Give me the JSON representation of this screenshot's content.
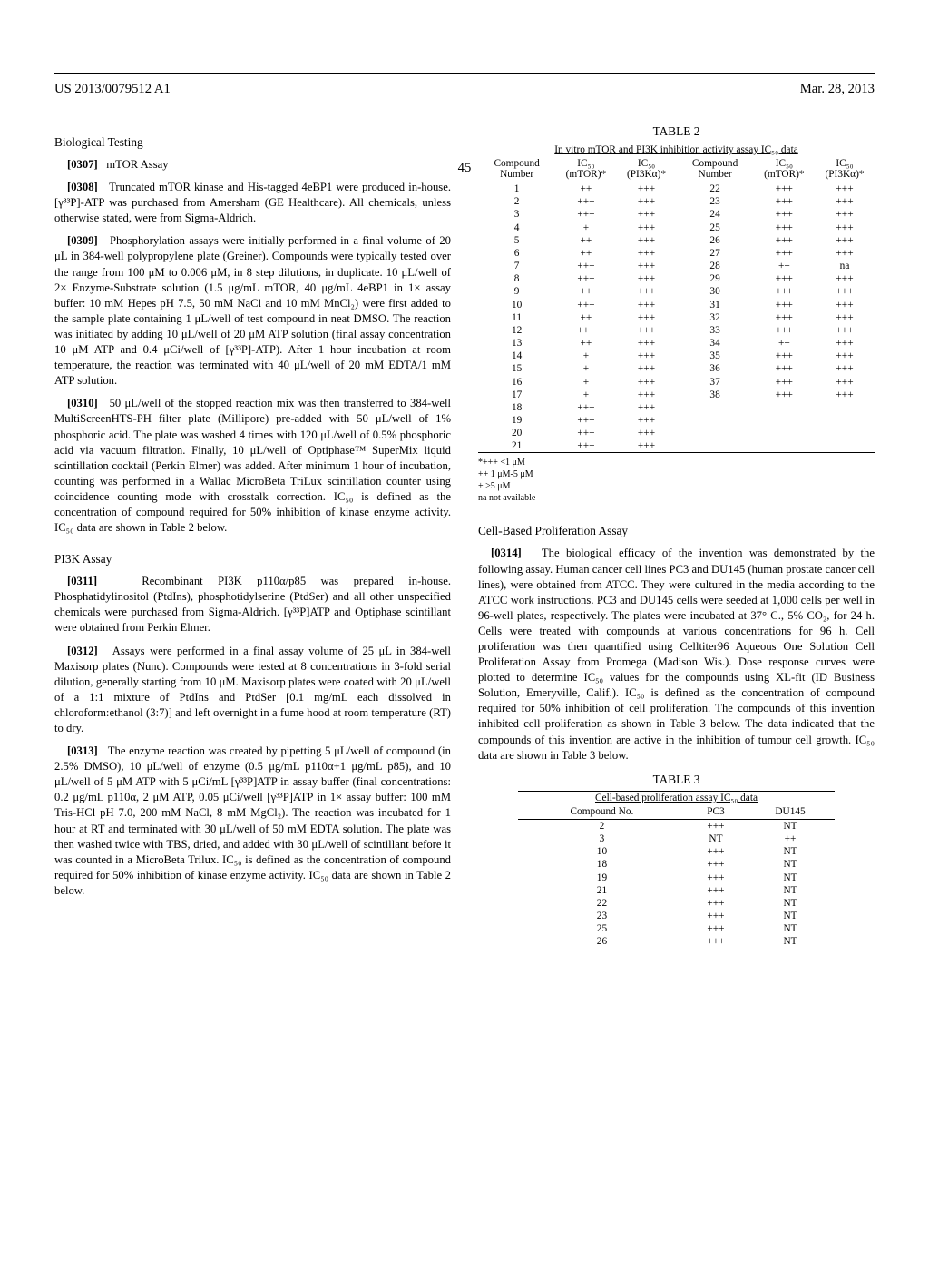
{
  "header": {
    "publication_number": "US 2013/0079512 A1",
    "page_number": "45",
    "date": "Mar. 28, 2013"
  },
  "left_column": {
    "heading_biological": "Biological Testing",
    "para_0307_num": "[0307]",
    "para_0307_text": "mTOR Assay",
    "para_0308_num": "[0308]",
    "para_0308_text": "Truncated mTOR kinase and His-tagged 4eBP1 were produced in-house. [γ³³P]-ATP was purchased from Amersham (GE Healthcare). All chemicals, unless otherwise stated, were from Sigma-Aldrich.",
    "para_0309_num": "[0309]",
    "para_0309_text": "Phosphorylation assays were initially performed in a final volume of 20 μL in 384-well polypropylene plate (Greiner). Compounds were typically tested over the range from 100 μM to 0.006 μM, in 8 step dilutions, in duplicate. 10 μL/well of 2× Enzyme-Substrate solution (1.5 μg/mL mTOR, 40 μg/mL 4eBP1 in 1× assay buffer: 10 mM Hepes pH 7.5, 50 mM NaCl and 10 mM MnCl₂) were first added to the sample plate containing 1 μL/well of test compound in neat DMSO. The reaction was initiated by adding 10 μL/well of 20 μM ATP solution (final assay concentration 10 μM ATP and 0.4 μCi/well of [γ³³P]-ATP). After 1 hour incubation at room temperature, the reaction was terminated with 40 μL/well of 20 mM EDTA/1 mM ATP solution.",
    "para_0310_num": "[0310]",
    "para_0310_text": "50 μL/well of the stopped reaction mix was then transferred to 384-well MultiScreenHTS-PH filter plate (Millipore) pre-added with 50 μL/well of 1% phosphoric acid. The plate was washed 4 times with 120 μL/well of 0.5% phosphoric acid via vacuum filtration. Finally, 10 μL/well of Optiphase™ SuperMix liquid scintillation cocktail (Perkin Elmer) was added. After minimum 1 hour of incubation, counting was performed in a Wallac MicroBeta TriLux scintillation counter using coincidence counting mode with crosstalk correction. IC₅₀ is defined as the concentration of compound required for 50% inhibition of kinase enzyme activity. IC₅₀ data are shown in Table 2 below.",
    "heading_pi3k": "PI3K Assay",
    "para_0311_num": "[0311]",
    "para_0311_text": "Recombinant PI3K p110α/p85 was prepared in-house. Phosphatidylinositol (PtdIns), phosphotidylserine (PtdSer) and all other unspecified chemicals were purchased from Sigma-Aldrich. [γ³³P]ATP and Optiphase scintillant were obtained from Perkin Elmer.",
    "para_0312_num": "[0312]",
    "para_0312_text": "Assays were performed in a final assay volume of 25 μL in 384-well Maxisorp plates (Nunc). Compounds were tested at 8 concentrations in 3-fold serial dilution, generally starting from 10 μM. Maxisorp plates were coated with 20 μL/well of a 1:1 mixture of PtdIns and PtdSer [0.1 mg/mL each dissolved in chloroform:ethanol (3:7)] and left overnight in a fume hood at room temperature (RT) to dry.",
    "para_0313_num": "[0313]",
    "para_0313_text": "The enzyme reaction was created by pipetting 5 μL/well of compound (in 2.5% DMSO), 10 μL/well of enzyme (0.5 μg/mL p110α+1 μg/mL p85), and 10 μL/well of 5 μM ATP with 5 μCi/mL [γ³³P]ATP in assay buffer (final concentrations: 0.2 μg/mL p110α, 2 μM ATP, 0.05 μCi/well [γ³³P]ATP in 1× assay buffer: 100 mM Tris-HCl pH 7.0, 200 mM NaCl, 8 mM MgCl₂). The reaction was incubated for 1 hour at RT and terminated with 30 μL/well of 50 mM EDTA solution. The plate was then washed twice with TBS, dried, and added with 30 μL/well of scintillant before it was counted in a MicroBeta Trilux. IC₅₀ is defined as the concentration of compound required for 50% inhibition of kinase enzyme activity. IC₅₀ data are shown in Table 2 below."
  },
  "right_column": {
    "table2_caption": "TABLE 2",
    "table2_subtitle": "In vitro mTOR and PI3K inhibition activity assay IC₅₀ data",
    "table2_header_compound": "Compound Number",
    "table2_header_mtor": "IC₅₀ (mTOR)*",
    "table2_header_pi3k": "IC₅₀ (PI3Kα)*",
    "table2_rows": [
      [
        "1",
        "++",
        "+++",
        "22",
        "+++",
        "+++"
      ],
      [
        "2",
        "+++",
        "+++",
        "23",
        "+++",
        "+++"
      ],
      [
        "3",
        "+++",
        "+++",
        "24",
        "+++",
        "+++"
      ],
      [
        "4",
        "+",
        "+++",
        "25",
        "+++",
        "+++"
      ],
      [
        "5",
        "++",
        "+++",
        "26",
        "+++",
        "+++"
      ],
      [
        "6",
        "++",
        "+++",
        "27",
        "+++",
        "+++"
      ],
      [
        "7",
        "+++",
        "+++",
        "28",
        "++",
        "na"
      ],
      [
        "8",
        "+++",
        "+++",
        "29",
        "+++",
        "+++"
      ],
      [
        "9",
        "++",
        "+++",
        "30",
        "+++",
        "+++"
      ],
      [
        "10",
        "+++",
        "+++",
        "31",
        "+++",
        "+++"
      ],
      [
        "11",
        "++",
        "+++",
        "32",
        "+++",
        "+++"
      ],
      [
        "12",
        "+++",
        "+++",
        "33",
        "+++",
        "+++"
      ],
      [
        "13",
        "++",
        "+++",
        "34",
        "++",
        "+++"
      ],
      [
        "14",
        "+",
        "+++",
        "35",
        "+++",
        "+++"
      ],
      [
        "15",
        "+",
        "+++",
        "36",
        "+++",
        "+++"
      ],
      [
        "16",
        "+",
        "+++",
        "37",
        "+++",
        "+++"
      ],
      [
        "17",
        "+",
        "+++",
        "38",
        "+++",
        "+++"
      ],
      [
        "18",
        "+++",
        "+++",
        "",
        "",
        ""
      ],
      [
        "19",
        "+++",
        "+++",
        "",
        "",
        ""
      ],
      [
        "20",
        "+++",
        "+++",
        "",
        "",
        ""
      ],
      [
        "21",
        "+++",
        "+++",
        "",
        "",
        ""
      ]
    ],
    "table2_footnote1": "*+++ <1 μM",
    "table2_footnote2": "++ 1 μM-5 μM",
    "table2_footnote3": "+ >5 μM",
    "table2_footnote4": "na not available",
    "heading_cell": "Cell-Based Proliferation Assay",
    "para_0314_num": "[0314]",
    "para_0314_text": "The biological efficacy of the invention was demonstrated by the following assay. Human cancer cell lines PC3 and DU145 (human prostate cancer cell lines), were obtained from ATCC. They were cultured in the media according to the ATCC work instructions. PC3 and DU145 cells were seeded at 1,000 cells per well in 96-well plates, respectively. The plates were incubated at 37° C., 5% CO₂, for 24 h. Cells were treated with compounds at various concentrations for 96 h. Cell proliferation was then quantified using Celltiter96 Aqueous One Solution Cell Proliferation Assay from Promega (Madison Wis.). Dose response curves were plotted to determine IC₅₀ values for the compounds using XL-fit (ID Business Solution, Emeryville, Calif.). IC₅₀ is defined as the concentration of compound required for 50% inhibition of cell proliferation. The compounds of this invention inhibited cell proliferation as shown in Table 3 below. The data indicated that the compounds of this invention are active in the inhibition of tumour cell growth. IC₅₀ data are shown in Table 3 below.",
    "table3_caption": "TABLE 3",
    "table3_subtitle": "Cell-based proliferation assay IC₅₀ data",
    "table3_header_no": "Compound No.",
    "table3_header_pc3": "PC3",
    "table3_header_du145": "DU145",
    "table3_rows": [
      [
        "2",
        "+++",
        "NT"
      ],
      [
        "3",
        "NT",
        "++"
      ],
      [
        "10",
        "+++",
        "NT"
      ],
      [
        "18",
        "+++",
        "NT"
      ],
      [
        "19",
        "+++",
        "NT"
      ],
      [
        "21",
        "+++",
        "NT"
      ],
      [
        "22",
        "+++",
        "NT"
      ],
      [
        "23",
        "+++",
        "NT"
      ],
      [
        "25",
        "+++",
        "NT"
      ],
      [
        "26",
        "+++",
        "NT"
      ]
    ]
  }
}
